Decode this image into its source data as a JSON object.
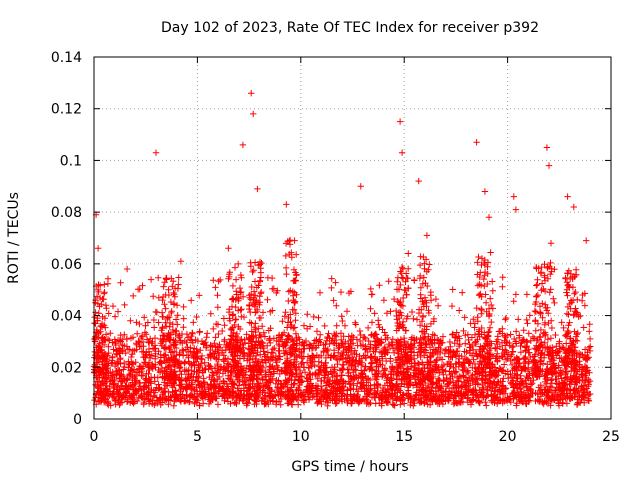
{
  "chart_data": {
    "type": "scatter",
    "title": "Day 102 of 2023, Rate Of TEC Index for receiver p392",
    "xlabel": "GPS time / hours",
    "ylabel": "ROTI / TECUs",
    "xlim": [
      0,
      25
    ],
    "ylim": [
      0,
      0.14
    ],
    "x_ticks": [
      0,
      5,
      10,
      15,
      20,
      25
    ],
    "x_tick_labels": [
      "0",
      "5",
      "10",
      "15",
      "20",
      "25"
    ],
    "y_ticks": [
      0,
      0.02,
      0.04,
      0.06,
      0.08,
      0.1,
      0.12,
      0.14
    ],
    "y_tick_labels": [
      "0",
      "0.02",
      "0.04",
      "0.06",
      "0.08",
      "0.1",
      "0.12",
      "0.14"
    ],
    "grid": true,
    "marker": "+",
    "color": "#ff0000",
    "data_span_hours": [
      0,
      24
    ],
    "baseline_range": [
      0.005,
      0.03
    ],
    "peaks": [
      {
        "x": 0.1,
        "y": 0.079
      },
      {
        "x": 0.2,
        "y": 0.066
      },
      {
        "x": 0.5,
        "y": 0.052
      },
      {
        "x": 1.6,
        "y": 0.058
      },
      {
        "x": 3.0,
        "y": 0.103
      },
      {
        "x": 4.2,
        "y": 0.061
      },
      {
        "x": 6.5,
        "y": 0.066
      },
      {
        "x": 7.2,
        "y": 0.106
      },
      {
        "x": 7.6,
        "y": 0.126
      },
      {
        "x": 7.7,
        "y": 0.118
      },
      {
        "x": 7.9,
        "y": 0.089
      },
      {
        "x": 9.3,
        "y": 0.083
      },
      {
        "x": 9.7,
        "y": 0.069
      },
      {
        "x": 12.9,
        "y": 0.09
      },
      {
        "x": 14.8,
        "y": 0.115
      },
      {
        "x": 14.9,
        "y": 0.103
      },
      {
        "x": 15.2,
        "y": 0.064
      },
      {
        "x": 15.7,
        "y": 0.092
      },
      {
        "x": 16.1,
        "y": 0.071
      },
      {
        "x": 18.5,
        "y": 0.107
      },
      {
        "x": 18.9,
        "y": 0.088
      },
      {
        "x": 19.1,
        "y": 0.078
      },
      {
        "x": 20.3,
        "y": 0.086
      },
      {
        "x": 20.4,
        "y": 0.081
      },
      {
        "x": 21.9,
        "y": 0.105
      },
      {
        "x": 22.0,
        "y": 0.098
      },
      {
        "x": 22.1,
        "y": 0.068
      },
      {
        "x": 22.9,
        "y": 0.086
      },
      {
        "x": 23.2,
        "y": 0.082
      },
      {
        "x": 23.8,
        "y": 0.069
      }
    ],
    "clusters": [
      {
        "center": 0.3,
        "width": 0.6,
        "max": 0.052
      },
      {
        "center": 3.7,
        "width": 0.8,
        "max": 0.055
      },
      {
        "center": 6.8,
        "width": 0.7,
        "max": 0.06
      },
      {
        "center": 7.8,
        "width": 0.6,
        "max": 0.062
      },
      {
        "center": 9.5,
        "width": 0.6,
        "max": 0.07
      },
      {
        "center": 14.9,
        "width": 0.6,
        "max": 0.06
      },
      {
        "center": 16.0,
        "width": 0.6,
        "max": 0.065
      },
      {
        "center": 18.9,
        "width": 0.8,
        "max": 0.065
      },
      {
        "center": 21.8,
        "width": 1.0,
        "max": 0.062
      },
      {
        "center": 23.1,
        "width": 0.6,
        "max": 0.058
      }
    ]
  }
}
